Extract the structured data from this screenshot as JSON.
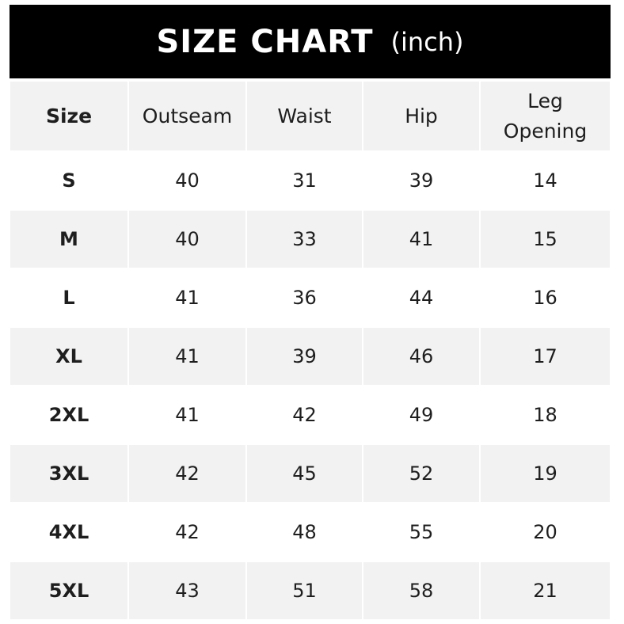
{
  "title": {
    "main": "SIZE CHART",
    "unit": "(inch)"
  },
  "headers": [
    "Size",
    "Outseam",
    "Waist",
    "Hip",
    "Leg Opening"
  ],
  "rows": [
    [
      "S",
      "40",
      "31",
      "39",
      "14"
    ],
    [
      "M",
      "40",
      "33",
      "41",
      "15"
    ],
    [
      "L",
      "41",
      "36",
      "44",
      "16"
    ],
    [
      "XL",
      "41",
      "39",
      "46",
      "17"
    ],
    [
      "2XL",
      "41",
      "42",
      "49",
      "18"
    ],
    [
      "3XL",
      "42",
      "45",
      "52",
      "19"
    ],
    [
      "4XL",
      "42",
      "48",
      "55",
      "20"
    ],
    [
      "5XL",
      "43",
      "51",
      "58",
      "21"
    ]
  ]
}
